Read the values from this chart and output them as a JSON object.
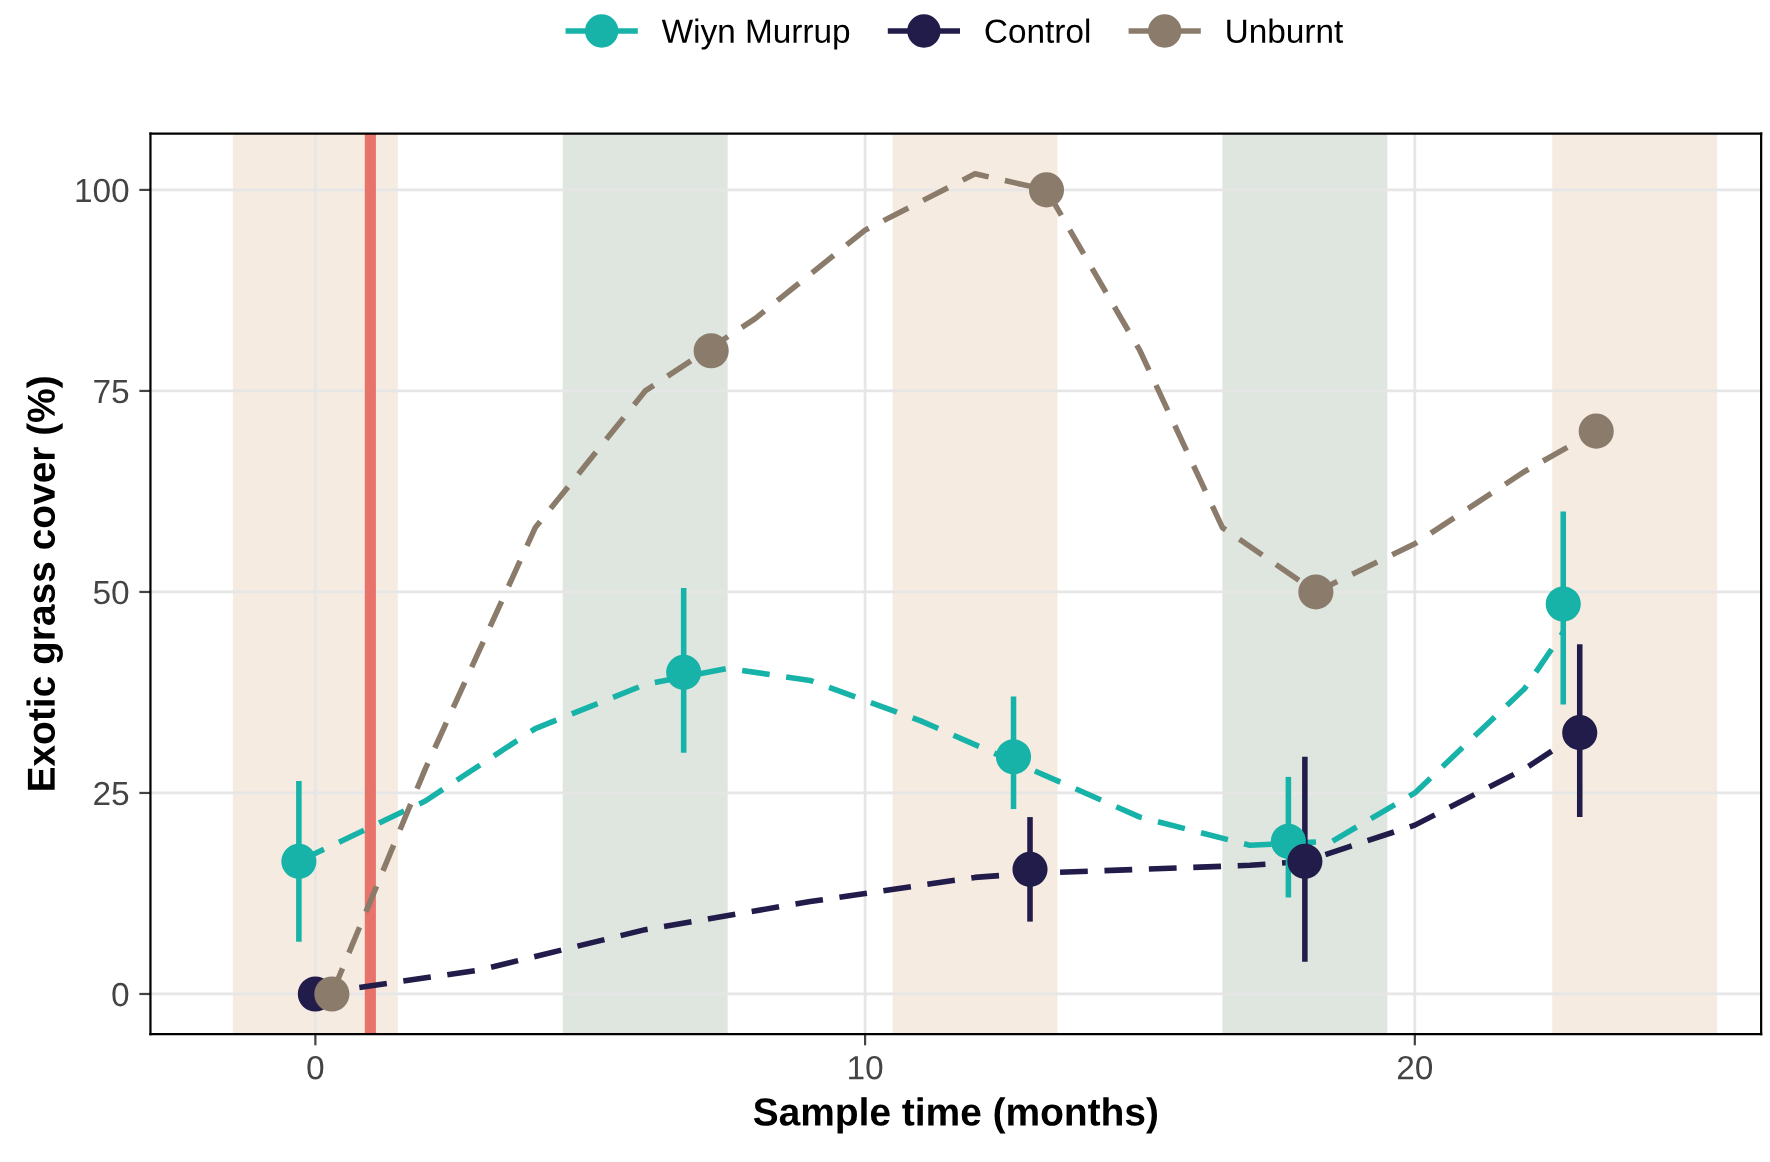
{
  "chart_data": {
    "type": "scatter",
    "xlabel": "Sample time (months)",
    "ylabel": "Exotic grass cover (%)",
    "xlim": [
      -3,
      26.3
    ],
    "ylim": [
      -5,
      107
    ],
    "xticks": [
      0,
      10,
      20
    ],
    "yticks": [
      0,
      25,
      50,
      75,
      100
    ],
    "grid": true,
    "legend": "top",
    "marker": "circle",
    "series": [
      {
        "name": "Wiyn Murrup",
        "color": "#17b3a8",
        "x": [
          -0.3,
          6.7,
          12.7,
          17.7,
          22.7
        ],
        "values": [
          16.5,
          40,
          29.5,
          19,
          48.5
        ],
        "errors": [
          [
            6.5,
            26.5
          ],
          [
            30,
            50.5
          ],
          [
            23,
            37
          ],
          [
            12,
            27
          ],
          [
            36,
            60
          ]
        ]
      },
      {
        "name": "Control",
        "color": "#221c4a",
        "x": [
          0,
          13,
          18,
          23
        ],
        "values": [
          0,
          15.5,
          16.5,
          32.5
        ],
        "errors": [
          null,
          [
            9,
            22
          ],
          [
            4,
            29.5
          ],
          [
            22,
            43.5
          ]
        ]
      },
      {
        "name": "Unburnt",
        "color": "#8b7b6b",
        "x": [
          0.3,
          7.2,
          13.3,
          18.2,
          23.3
        ],
        "values": [
          0,
          80,
          100,
          50,
          70
        ]
      },
      {
        "type": "line",
        "marker": "none",
        "line_style": "dashed",
        "color": "#17b3a8",
        "x": [
          -0.3,
          2,
          4,
          6,
          7.5,
          9,
          11,
          13,
          15,
          17,
          18.5,
          20,
          22,
          22.7
        ],
        "values": [
          16.5,
          24,
          33,
          38.5,
          40.5,
          39,
          34,
          28,
          22,
          18.5,
          19,
          25,
          38,
          45
        ]
      },
      {
        "type": "line",
        "marker": "none",
        "line_style": "dashed",
        "color": "#221c4a",
        "x": [
          0,
          3,
          6,
          9,
          12,
          13,
          15,
          17,
          18,
          20,
          22,
          23
        ],
        "values": [
          0,
          3,
          8,
          11.5,
          14.5,
          15,
          15.5,
          16,
          16.5,
          21,
          28,
          32.5
        ]
      },
      {
        "type": "line",
        "marker": "none",
        "line_style": "dashed",
        "color": "#8b7b6b",
        "x": [
          0.3,
          2,
          4,
          6,
          8,
          10,
          12,
          13.3,
          15,
          16.5,
          18.2,
          20,
          22,
          23.3
        ],
        "values": [
          0,
          28,
          58,
          75,
          84,
          95,
          102,
          100,
          80,
          58,
          50,
          56,
          65,
          70
        ]
      }
    ],
    "bands": [
      {
        "axis": "x",
        "from": -1.5,
        "to": 1.5,
        "color": "#f5ebe0"
      },
      {
        "axis": "x",
        "from": 4.5,
        "to": 7.5,
        "color": "#dfe6df"
      },
      {
        "axis": "x",
        "from": 10.5,
        "to": 13.5,
        "color": "#f5ebe0"
      },
      {
        "axis": "x",
        "from": 16.5,
        "to": 19.5,
        "color": "#dfe6df"
      },
      {
        "axis": "x",
        "from": 22.5,
        "to": 25.5,
        "color": "#f5ebe0"
      }
    ],
    "ref_lines": [
      {
        "axis": "x",
        "value": 1,
        "color": "#e8736b",
        "line_style": "solid"
      }
    ]
  }
}
